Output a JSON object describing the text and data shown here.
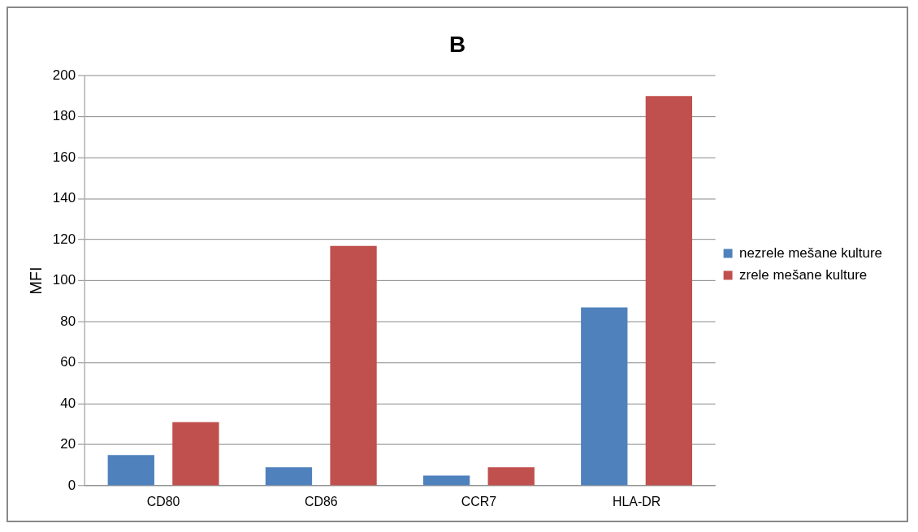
{
  "chart_data": {
    "type": "bar",
    "title": "B",
    "ylabel": "MFI",
    "categories": [
      "CD80",
      "CD86",
      "CCR7",
      "HLA-DR"
    ],
    "series": [
      {
        "name": "nezrele mešane kulture",
        "color": "#4f81bd",
        "values": [
          15,
          9,
          5,
          87
        ]
      },
      {
        "name": "zrele mešane kulture",
        "color": "#c0504d",
        "values": [
          31,
          117,
          9,
          190
        ]
      }
    ],
    "ylim": [
      0,
      200
    ],
    "yticks": [
      0,
      20,
      40,
      60,
      80,
      100,
      120,
      140,
      160,
      180,
      200
    ],
    "grid": "y",
    "legend": "right"
  }
}
